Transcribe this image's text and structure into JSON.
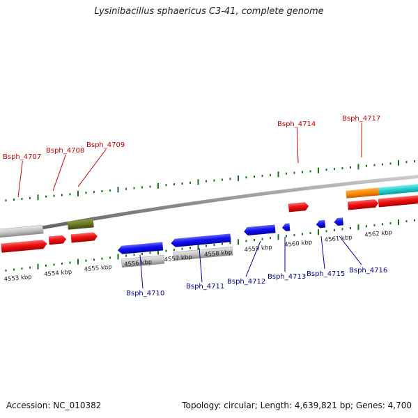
{
  "title": "Lysinibacillus sphaericus C3-41, complete genome",
  "accession": "Accession: NC_010382",
  "topology": "Topology: circular;",
  "length": "Length: 4,639,821 bp;",
  "genes": "Genes: 4,700",
  "colors": {
    "forward_label": "#cc0000",
    "reverse_label": "#000099",
    "forward_gene": "#ee1111",
    "reverse_gene": "#1111ee",
    "rna": "#bbbbbb",
    "olive": "#667722",
    "orange": "#ff8800",
    "teal": "#22cccc",
    "tick": "#117711",
    "backbone": "#888888"
  },
  "scale_labels": [
    {
      "text": "4553 kbp",
      "kb": 4553
    },
    {
      "text": "4554 kbp",
      "kb": 4554
    },
    {
      "text": "4555 kbp",
      "kb": 4555
    },
    {
      "text": "4556 kbp",
      "kb": 4556
    },
    {
      "text": "4557 kbp",
      "kb": 4557
    },
    {
      "text": "4558 kbp",
      "kb": 4558
    },
    {
      "text": "4559 kbp",
      "kb": 4559
    },
    {
      "text": "4560 kbp",
      "kb": 4560
    },
    {
      "text": "4561 kbp",
      "kb": 4561
    },
    {
      "text": "4562 kbp",
      "kb": 4562
    }
  ],
  "forward_labels": [
    "Bsph_4707",
    "Bsph_4708",
    "Bsph_4709",
    "Bsph_4714",
    "Bsph_4717"
  ],
  "reverse_labels": [
    "Bsph_4710",
    "Bsph_4711",
    "Bsph_4712",
    "Bsph_4713",
    "Bsph_4715",
    "Bsph_4716"
  ]
}
